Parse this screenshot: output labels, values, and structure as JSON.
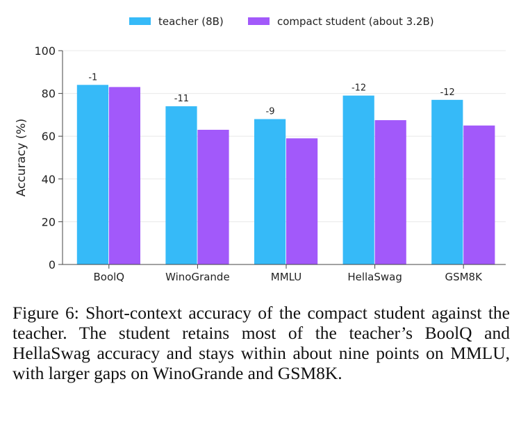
{
  "chart_data": {
    "type": "bar",
    "categories": [
      "BoolQ",
      "WinoGrande",
      "MMLU",
      "HellaSwag",
      "GSM8K"
    ],
    "series": [
      {
        "name": "teacher (8B)",
        "values": [
          84,
          74,
          68,
          79,
          77
        ],
        "color": "#36baf8"
      },
      {
        "name": "compact student (about 3.2B)",
        "values": [
          83,
          63,
          59,
          67.5,
          65
        ],
        "color": "#a259fa"
      }
    ],
    "annotations": [
      "-1",
      "-11",
      "-9",
      "-12",
      "-12"
    ],
    "ylabel": "Accuracy (%)",
    "xlabel": "",
    "ylim": [
      0,
      100
    ],
    "yticks": [
      0,
      20,
      40,
      60,
      80,
      100
    ],
    "grid": "horizontal",
    "legend_position": "top-center"
  },
  "caption": "Figure 6: Short-context accuracy of the compact student against the teacher. The student retains most of the teacher’s BoolQ and HellaSwag accuracy and stays within about nine points on MMLU, with larger gaps on WinoGrande and GSM8K."
}
